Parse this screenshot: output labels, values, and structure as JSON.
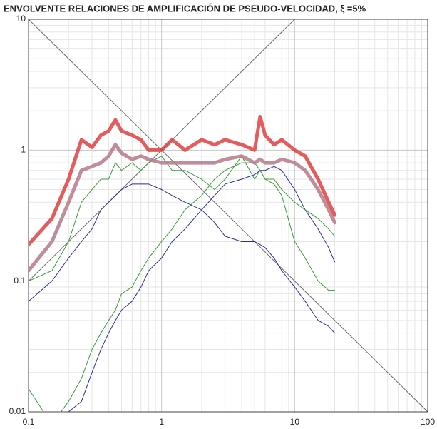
{
  "chart_data": {
    "type": "line",
    "title": "ENVOLVENTE RELACIONES DE AMPLIFICACIÓN DE PSEUDO-VELOCIDAD, ξ =5%",
    "log_x": true,
    "log_y": true,
    "grid": true,
    "minor_grid": true,
    "xlim": [
      0.1,
      100
    ],
    "ylim": [
      0.01,
      10
    ],
    "xticks": [
      0.1,
      1,
      10,
      100
    ],
    "yticks": [
      0.01,
      0.1,
      1,
      10
    ],
    "x": [
      0.1,
      0.15,
      0.2,
      0.25,
      0.3,
      0.35,
      0.4,
      0.45,
      0.5,
      0.6,
      0.7,
      0.8,
      1,
      1.2,
      1.5,
      2,
      2.5,
      3,
      4,
      5,
      5.5,
      6,
      7,
      8,
      10,
      12,
      15,
      18,
      20
    ],
    "series": [
      {
        "color": "#6b6b6b",
        "width": 1,
        "x": [
          0.1,
          10
        ],
        "values": [
          0.1,
          10
        ]
      },
      {
        "color": "#6b6b6b",
        "width": 1,
        "x": [
          0.1,
          100
        ],
        "values": [
          10,
          0.01
        ]
      },
      {
        "color": "#3a9a3a",
        "width": 1,
        "values": [
          0.015,
          0.008,
          0.012,
          0.018,
          0.03,
          0.04,
          0.05,
          0.06,
          0.08,
          0.09,
          0.12,
          0.15,
          0.2,
          0.25,
          0.35,
          0.45,
          0.6,
          0.7,
          0.8,
          0.8,
          0.7,
          0.6,
          0.55,
          0.45,
          0.2,
          0.15,
          0.1,
          0.085,
          0.085
        ]
      },
      {
        "color": "#2b2f9a",
        "width": 1,
        "values": [
          null,
          null,
          0.01,
          0.012,
          0.02,
          0.03,
          0.04,
          0.05,
          0.06,
          0.07,
          0.09,
          0.12,
          0.15,
          0.2,
          0.25,
          0.35,
          0.45,
          0.55,
          0.6,
          0.65,
          0.7,
          0.7,
          0.75,
          0.7,
          0.5,
          0.35,
          0.25,
          0.18,
          0.14
        ]
      },
      {
        "color": "#3a9a3a",
        "width": 1,
        "values": [
          0.1,
          0.12,
          0.2,
          0.4,
          0.5,
          0.6,
          0.6,
          0.8,
          0.7,
          0.8,
          0.7,
          0.8,
          0.9,
          0.7,
          0.7,
          0.6,
          0.5,
          0.6,
          0.9,
          0.6,
          0.7,
          0.6,
          0.6,
          0.5,
          0.4,
          0.35,
          0.3,
          0.25,
          0.22
        ]
      },
      {
        "color": "#2b2f9a",
        "width": 1,
        "values": [
          0.07,
          0.1,
          0.15,
          0.2,
          0.25,
          0.35,
          0.4,
          0.45,
          0.5,
          0.55,
          0.55,
          0.55,
          0.5,
          0.45,
          0.4,
          0.35,
          0.28,
          0.22,
          0.2,
          0.2,
          0.19,
          0.18,
          0.15,
          0.12,
          0.09,
          0.07,
          0.05,
          0.045,
          0.04
        ]
      },
      {
        "color": "#b57a8a",
        "width": 5,
        "values": [
          0.12,
          0.2,
          0.4,
          0.7,
          0.75,
          0.8,
          0.9,
          1.1,
          0.95,
          0.85,
          0.9,
          0.85,
          0.8,
          0.8,
          0.8,
          0.8,
          0.8,
          0.85,
          0.9,
          0.8,
          0.85,
          0.8,
          0.8,
          0.85,
          0.8,
          0.7,
          0.5,
          0.35,
          0.28
        ]
      },
      {
        "color": "#e0403f",
        "width": 5,
        "values": [
          0.19,
          0.3,
          0.6,
          1.2,
          1.05,
          1.3,
          1.4,
          1.7,
          1.4,
          1.3,
          1.2,
          1.0,
          1.0,
          1.2,
          1.0,
          1.2,
          1.1,
          1.2,
          1.1,
          1.0,
          1.8,
          1.3,
          1.1,
          1.2,
          1.0,
          0.9,
          0.6,
          0.4,
          0.32
        ]
      }
    ]
  }
}
